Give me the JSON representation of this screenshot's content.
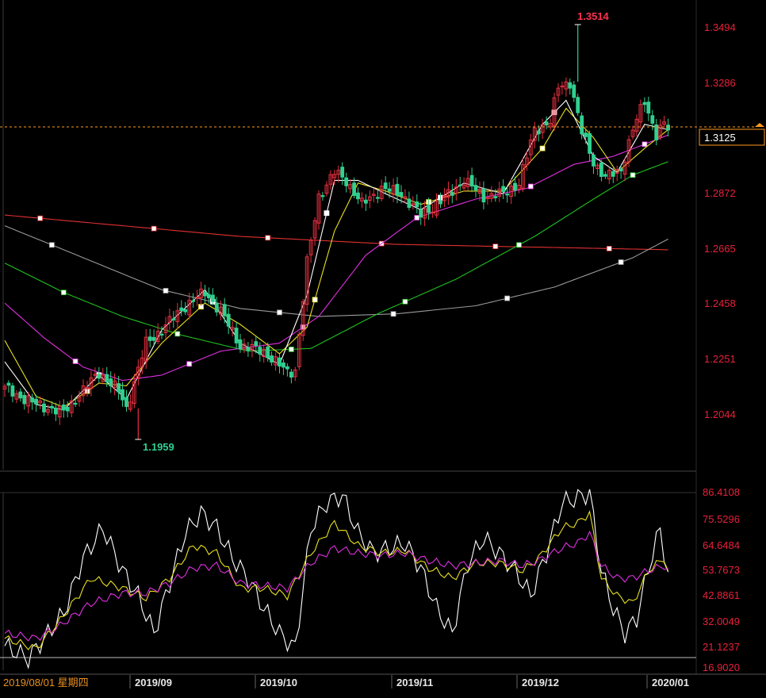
{
  "colors": {
    "background": "#000000",
    "axis_label": "#e8203a",
    "date_label": "#e89020",
    "up_candle": "#e83040",
    "down_candle": "#30d090",
    "price_line": "#ff9a1e",
    "ma_white": "#ffffff",
    "ma_yellow": "#e8e020",
    "ma_magenta": "#e030e0",
    "ma_green": "#20c020",
    "ma_gray": "#9a9a9a",
    "ma_red": "#e03030",
    "low_label": "#30d090",
    "high_label": "#ff3050"
  },
  "chart_data": [
    {
      "type": "candlestick",
      "panel": "price",
      "y_ticks": [
        "1.3494",
        "1.3286",
        "1.3125",
        "1.2872",
        "1.2665",
        "1.2458",
        "1.2251",
        "1.2044"
      ],
      "y_tick_values": [
        1.3494,
        1.3286,
        1.2872,
        1.2665,
        1.2458,
        1.2251,
        1.2044
      ],
      "ylim": [
        1.1959,
        1.3514
      ],
      "current_price": 1.3125,
      "current_price_label": "1.3125",
      "high": {
        "value": 1.3514,
        "label": "1.3514"
      },
      "low": {
        "value": 1.1959,
        "label": "1.1959"
      },
      "x_labels": [
        "2019/08/01 星期四",
        "2019/09",
        "2019/10",
        "2019/11",
        "2019/12",
        "2020/01"
      ],
      "anchors": [
        {
          "t": 0,
          "v": 1.215
        },
        {
          "t": 8,
          "v": 1.209
        },
        {
          "t": 15,
          "v": 1.206
        },
        {
          "t": 24,
          "v": 1.221
        },
        {
          "t": 29,
          "v": 1.214
        },
        {
          "t": 31,
          "v": 1.2075
        },
        {
          "t": 36,
          "v": 1.232
        },
        {
          "t": 40,
          "v": 1.237
        },
        {
          "t": 46,
          "v": 1.246
        },
        {
          "t": 51,
          "v": 1.251
        },
        {
          "t": 55,
          "v": 1.244
        },
        {
          "t": 60,
          "v": 1.231
        },
        {
          "t": 66,
          "v": 1.229
        },
        {
          "t": 72,
          "v": 1.221
        },
        {
          "t": 74,
          "v": 1.222
        },
        {
          "t": 77,
          "v": 1.262
        },
        {
          "t": 80,
          "v": 1.287
        },
        {
          "t": 84,
          "v": 1.296
        },
        {
          "t": 87,
          "v": 1.293
        },
        {
          "t": 91,
          "v": 1.284
        },
        {
          "t": 96,
          "v": 1.29
        },
        {
          "t": 101,
          "v": 1.288
        },
        {
          "t": 106,
          "v": 1.28
        },
        {
          "t": 111,
          "v": 1.285
        },
        {
          "t": 117,
          "v": 1.293
        },
        {
          "t": 122,
          "v": 1.287
        },
        {
          "t": 127,
          "v": 1.288
        },
        {
          "t": 131,
          "v": 1.292
        },
        {
          "t": 135,
          "v": 1.312
        },
        {
          "t": 139,
          "v": 1.315
        },
        {
          "t": 141,
          "v": 1.328
        },
        {
          "t": 144,
          "v": 1.33
        },
        {
          "t": 147,
          "v": 1.311
        },
        {
          "t": 150,
          "v": 1.3
        },
        {
          "t": 153,
          "v": 1.294
        },
        {
          "t": 157,
          "v": 1.297
        },
        {
          "t": 160,
          "v": 1.312
        },
        {
          "t": 163,
          "v": 1.323
        },
        {
          "t": 166,
          "v": 1.31
        },
        {
          "t": 168,
          "v": 1.314
        },
        {
          "t": 169,
          "v": 1.3125
        }
      ],
      "moving_averages": [
        {
          "color": "ma_red",
          "points": [
            [
              0,
              1.28
            ],
            [
              60,
              1.272
            ],
            [
              100,
              1.269
            ],
            [
              169,
              1.267
            ]
          ]
        },
        {
          "color": "ma_gray",
          "points": [
            [
              0,
              1.276
            ],
            [
              20,
              1.264
            ],
            [
              40,
              1.252
            ],
            [
              60,
              1.245
            ],
            [
              80,
              1.242
            ],
            [
              100,
              1.243
            ],
            [
              120,
              1.246
            ],
            [
              140,
              1.253
            ],
            [
              160,
              1.264
            ],
            [
              169,
              1.271
            ]
          ]
        },
        {
          "color": "ma_green",
          "points": [
            [
              0,
              1.262
            ],
            [
              15,
              1.251
            ],
            [
              30,
              1.242
            ],
            [
              45,
              1.235
            ],
            [
              62,
              1.229
            ],
            [
              78,
              1.23
            ],
            [
              95,
              1.243
            ],
            [
              115,
              1.256
            ],
            [
              135,
              1.272
            ],
            [
              150,
              1.286
            ],
            [
              160,
              1.295
            ],
            [
              169,
              1.3
            ]
          ]
        },
        {
          "color": "ma_magenta",
          "points": [
            [
              0,
              1.247
            ],
            [
              10,
              1.234
            ],
            [
              20,
              1.223
            ],
            [
              30,
              1.218
            ],
            [
              40,
              1.22
            ],
            [
              55,
              1.229
            ],
            [
              70,
              1.232
            ],
            [
              80,
              1.242
            ],
            [
              92,
              1.265
            ],
            [
              105,
              1.279
            ],
            [
              120,
              1.286
            ],
            [
              133,
              1.29
            ],
            [
              145,
              1.299
            ],
            [
              155,
              1.302
            ],
            [
              162,
              1.306
            ],
            [
              169,
              1.31
            ]
          ]
        },
        {
          "color": "ma_yellow",
          "points": [
            [
              0,
              1.233
            ],
            [
              8,
              1.212
            ],
            [
              15,
              1.208
            ],
            [
              24,
              1.217
            ],
            [
              31,
              1.216
            ],
            [
              40,
              1.232
            ],
            [
              51,
              1.247
            ],
            [
              60,
              1.239
            ],
            [
              70,
              1.228
            ],
            [
              77,
              1.238
            ],
            [
              84,
              1.274
            ],
            [
              90,
              1.292
            ],
            [
              97,
              1.289
            ],
            [
              106,
              1.284
            ],
            [
              117,
              1.289
            ],
            [
              127,
              1.289
            ],
            [
              137,
              1.305
            ],
            [
              143,
              1.32
            ],
            [
              150,
              1.309
            ],
            [
              156,
              1.296
            ],
            [
              163,
              1.305
            ],
            [
              169,
              1.312
            ]
          ]
        },
        {
          "color": "ma_white",
          "points": [
            [
              0,
              1.225
            ],
            [
              8,
              1.209
            ],
            [
              15,
              1.207
            ],
            [
              24,
              1.22
            ],
            [
              31,
              1.211
            ],
            [
              40,
              1.237
            ],
            [
              51,
              1.252
            ],
            [
              60,
              1.232
            ],
            [
              70,
              1.224
            ],
            [
              77,
              1.25
            ],
            [
              84,
              1.293
            ],
            [
              90,
              1.293
            ],
            [
              97,
              1.288
            ],
            [
              106,
              1.282
            ],
            [
              117,
              1.292
            ],
            [
              127,
              1.288
            ],
            [
              137,
              1.314
            ],
            [
              143,
              1.323
            ],
            [
              150,
              1.302
            ],
            [
              156,
              1.296
            ],
            [
              163,
              1.314
            ],
            [
              169,
              1.312
            ]
          ]
        }
      ]
    },
    {
      "type": "line",
      "panel": "oscillator",
      "y_ticks": [
        "86.4108",
        "75.5296",
        "64.6484",
        "53.7673",
        "42.8861",
        "32.0049",
        "21.1237",
        "16.9020"
      ],
      "y_tick_values": [
        86.4108,
        75.5296,
        64.6484,
        53.7673,
        42.8861,
        32.0049,
        21.1237
      ],
      "ylim": [
        16.902,
        86.4108
      ],
      "series": [
        {
          "color": "ma_white",
          "points": [
            [
              0,
              25
            ],
            [
              6,
              20
            ],
            [
              10,
              28
            ],
            [
              15,
              38
            ],
            [
              20,
              60
            ],
            [
              25,
              72
            ],
            [
              30,
              55
            ],
            [
              34,
              45
            ],
            [
              38,
              30
            ],
            [
              42,
              50
            ],
            [
              46,
              70
            ],
            [
              50,
              78
            ],
            [
              54,
              72
            ],
            [
              58,
              60
            ],
            [
              62,
              52
            ],
            [
              66,
              40
            ],
            [
              70,
              30
            ],
            [
              74,
              24
            ],
            [
              78,
              72
            ],
            [
              82,
              82
            ],
            [
              86,
              85
            ],
            [
              90,
              70
            ],
            [
              94,
              62
            ],
            [
              98,
              64
            ],
            [
              102,
              66
            ],
            [
              106,
              56
            ],
            [
              110,
              40
            ],
            [
              114,
              30
            ],
            [
              118,
              58
            ],
            [
              122,
              68
            ],
            [
              126,
              62
            ],
            [
              130,
              55
            ],
            [
              134,
              45
            ],
            [
              138,
              62
            ],
            [
              142,
              82
            ],
            [
              146,
              84
            ],
            [
              149,
              86
            ],
            [
              152,
              55
            ],
            [
              155,
              40
            ],
            [
              158,
              30
            ],
            [
              161,
              36
            ],
            [
              164,
              56
            ],
            [
              167,
              72
            ],
            [
              169,
              52
            ]
          ]
        },
        {
          "color": "ma_yellow",
          "points": [
            [
              0,
              28
            ],
            [
              8,
              24
            ],
            [
              14,
              35
            ],
            [
              22,
              52
            ],
            [
              30,
              48
            ],
            [
              36,
              44
            ],
            [
              42,
              52
            ],
            [
              48,
              65
            ],
            [
              54,
              62
            ],
            [
              60,
              48
            ],
            [
              66,
              48
            ],
            [
              72,
              45
            ],
            [
              78,
              62
            ],
            [
              84,
              74
            ],
            [
              90,
              65
            ],
            [
              96,
              62
            ],
            [
              102,
              63
            ],
            [
              108,
              56
            ],
            [
              114,
              52
            ],
            [
              120,
              58
            ],
            [
              126,
              58
            ],
            [
              132,
              55
            ],
            [
              136,
              60
            ],
            [
              142,
              72
            ],
            [
              146,
              74
            ],
            [
              149,
              78
            ],
            [
              152,
              52
            ],
            [
              156,
              45
            ],
            [
              160,
              42
            ],
            [
              164,
              55
            ],
            [
              168,
              60
            ],
            [
              169,
              54
            ]
          ]
        },
        {
          "color": "ma_magenta",
          "points": [
            [
              0,
              30
            ],
            [
              8,
              28
            ],
            [
              14,
              33
            ],
            [
              22,
              42
            ],
            [
              30,
              46
            ],
            [
              36,
              46
            ],
            [
              42,
              50
            ],
            [
              48,
              56
            ],
            [
              54,
              57
            ],
            [
              60,
              50
            ],
            [
              66,
              49
            ],
            [
              72,
              48
            ],
            [
              78,
              58
            ],
            [
              84,
              64
            ],
            [
              90,
              62
            ],
            [
              96,
              61
            ],
            [
              102,
              62
            ],
            [
              108,
              59
            ],
            [
              114,
              57
            ],
            [
              120,
              58
            ],
            [
              126,
              59
            ],
            [
              132,
              57
            ],
            [
              136,
              59
            ],
            [
              142,
              64
            ],
            [
              146,
              66
            ],
            [
              149,
              70
            ],
            [
              152,
              57
            ],
            [
              156,
              52
            ],
            [
              160,
              52
            ],
            [
              164,
              55
            ],
            [
              168,
              57
            ],
            [
              169,
              55
            ]
          ]
        }
      ]
    }
  ]
}
